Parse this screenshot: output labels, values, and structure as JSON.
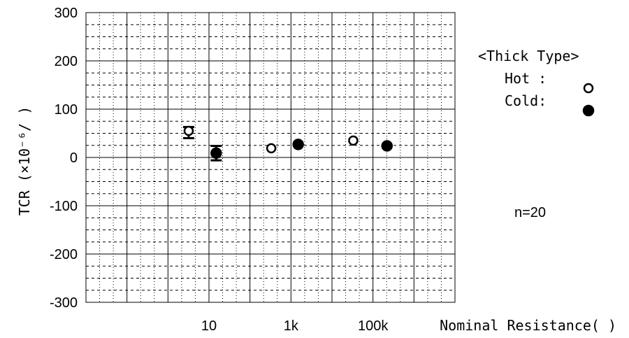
{
  "chart_data": {
    "type": "scatter",
    "title": "",
    "xlabel": "Nominal Resistance(   )",
    "ylabel": "TCR (×10⁻⁶/   )",
    "x_scale": "log",
    "xlim": [
      0.01,
      10000000
    ],
    "ylim": [
      -300,
      300
    ],
    "x_tick_labels": [
      {
        "x": 10,
        "label": "10"
      },
      {
        "x": 1000,
        "label": "1k"
      },
      {
        "x": 100000,
        "label": "100k"
      }
    ],
    "y_ticks": [
      300,
      200,
      100,
      0,
      -100,
      -200,
      -300
    ],
    "y_tick_labels": [
      "300",
      "200",
      "100",
      "0",
      "-100",
      "-200",
      "-300"
    ],
    "grid": "major solid, minor dotted",
    "series": [
      {
        "name": "Hot",
        "marker": "open-circle",
        "points": [
          {
            "x": 3.2,
            "y": 55,
            "err_low": 40,
            "err_high": 63
          },
          {
            "x": 330,
            "y": 19
          },
          {
            "x": 33000,
            "y": 35
          }
        ]
      },
      {
        "name": "Cold",
        "marker": "filled-circle",
        "points": [
          {
            "x": 15,
            "y": 9,
            "err_low": -6,
            "err_high": 24
          },
          {
            "x": 1500,
            "y": 27
          },
          {
            "x": 220000,
            "y": 24
          }
        ]
      }
    ]
  },
  "legend": {
    "title": "<Thick Type>",
    "hot_label": "Hot :",
    "cold_label": "Cold:"
  },
  "sample_size": "n=20"
}
